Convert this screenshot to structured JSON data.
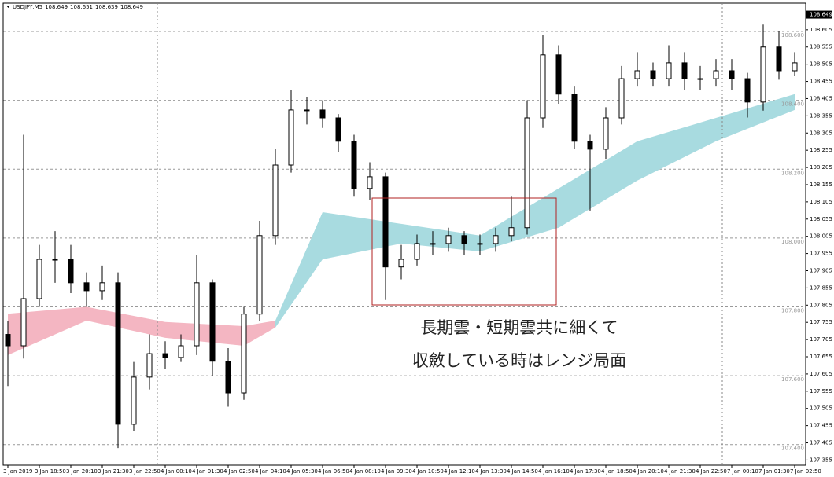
{
  "chart_data": {
    "type": "candlestick",
    "header": {
      "symbol": "USDJPY,M5",
      "quote": [
        108.649,
        108.651,
        108.639,
        108.649
      ]
    },
    "last_price": 108.649,
    "annotations": [
      "長期雲・短期雲共に細くて",
      "収斂している時はレンジ局面"
    ],
    "ylim": [
      107.34,
      108.664
    ],
    "xlim": [
      -0.3,
      50.7
    ],
    "yticks": [
      108.605,
      108.555,
      108.505,
      108.455,
      108.405,
      108.355,
      108.305,
      108.255,
      108.205,
      108.155,
      108.105,
      108.055,
      108.005,
      107.955,
      107.905,
      107.855,
      107.805,
      107.755,
      107.705,
      107.655,
      107.605,
      107.555,
      107.505,
      107.455,
      107.405,
      107.355
    ],
    "levels": [
      {
        "value": 108.6,
        "label": "108.600"
      },
      {
        "value": 108.4,
        "label": "108.400"
      },
      {
        "value": 108.2,
        "label": "108.200"
      },
      {
        "value": 108.0,
        "label": "108.000"
      },
      {
        "value": 107.8,
        "label": "107.800"
      },
      {
        "value": 107.6,
        "label": "107.600"
      },
      {
        "value": 107.4,
        "label": "107.400"
      }
    ],
    "xticks": [
      {
        "value": 0,
        "label": "3 Jan 2019"
      },
      {
        "value": 2,
        "label": "3 Jan 18:50"
      },
      {
        "value": 4,
        "label": "3 Jan 20:10"
      },
      {
        "value": 6,
        "label": "3 Jan 21:30"
      },
      {
        "value": 8,
        "label": "3 Jan 22:50"
      },
      {
        "value": 10,
        "label": "4 Jan 00:10"
      },
      {
        "value": 12,
        "label": "4 Jan 01:30"
      },
      {
        "value": 14,
        "label": "4 Jan 02:50"
      },
      {
        "value": 16,
        "label": "4 Jan 04:10"
      },
      {
        "value": 18,
        "label": "4 Jan 05:30"
      },
      {
        "value": 20,
        "label": "4 Jan 06:50"
      },
      {
        "value": 22,
        "label": "4 Jan 08:10"
      },
      {
        "value": 24,
        "label": "4 Jan 09:30"
      },
      {
        "value": 26,
        "label": "4 Jan 10:50"
      },
      {
        "value": 28,
        "label": "4 Jan 12:10"
      },
      {
        "value": 30,
        "label": "4 Jan 13:30"
      },
      {
        "value": 32,
        "label": "4 Jan 14:50"
      },
      {
        "value": 34,
        "label": "4 Jan 16:10"
      },
      {
        "value": 36,
        "label": "4 Jan 17:30"
      },
      {
        "value": 38,
        "label": "4 Jan 18:50"
      },
      {
        "value": 40,
        "label": "4 Jan 20:10"
      },
      {
        "value": 42,
        "label": "4 Jan 21:30"
      },
      {
        "value": 44,
        "label": "4 Jan 22:50"
      },
      {
        "value": 46,
        "label": "7 Jan 00:10"
      },
      {
        "value": 48,
        "label": "7 Jan 01:30"
      },
      {
        "value": 50,
        "label": "7 Jan 02:50"
      }
    ],
    "clouds": [
      {
        "color": "#f4b6c2",
        "index": [
          0,
          5,
          10,
          15,
          17
        ],
        "upper": [
          107.78,
          107.8,
          107.756,
          107.744,
          107.76
        ],
        "lower": [
          107.66,
          107.76,
          107.71,
          107.687,
          107.74
        ]
      },
      {
        "color": "#a8dbe0",
        "index": [
          17,
          20,
          25,
          30,
          35,
          40,
          45,
          50
        ],
        "upper": [
          107.76,
          108.075,
          108.041,
          108.007,
          108.144,
          108.281,
          108.349,
          108.418
        ],
        "lower": [
          107.74,
          107.938,
          107.984,
          107.961,
          108.03,
          108.167,
          108.281,
          108.372
        ]
      }
    ],
    "open": [
      107.72,
      107.687,
      107.824,
      107.938,
      107.938,
      107.87,
      107.847,
      107.87,
      107.459,
      107.596,
      107.664,
      107.653,
      107.687,
      107.87,
      107.642,
      107.55,
      107.779,
      108.007,
      108.212,
      108.372,
      108.372,
      108.349,
      108.281,
      108.144,
      108.178,
      107.916,
      107.938,
      107.984,
      107.984,
      108.007,
      107.984,
      107.984,
      108.007,
      108.03,
      108.349,
      108.532,
      108.418,
      108.281,
      108.258,
      108.349,
      108.463,
      108.486,
      108.463,
      108.509,
      108.463,
      108.463,
      108.486,
      108.463,
      108.395,
      108.555,
      108.486
    ],
    "high": [
      107.76,
      108.3,
      107.98,
      108.02,
      107.98,
      107.9,
      107.92,
      107.9,
      107.64,
      107.72,
      107.7,
      107.72,
      107.95,
      107.88,
      107.68,
      107.8,
      108.05,
      108.26,
      108.43,
      108.41,
      108.4,
      108.36,
      108.3,
      108.22,
      108.19,
      107.98,
      108.01,
      108.02,
      108.03,
      108.02,
      108.01,
      108.03,
      108.12,
      108.4,
      108.59,
      108.56,
      108.44,
      108.3,
      108.38,
      108.5,
      108.54,
      108.51,
      108.56,
      108.54,
      108.5,
      108.52,
      108.52,
      108.48,
      108.62,
      108.6,
      108.54
    ],
    "low": [
      107.57,
      107.65,
      107.8,
      107.87,
      107.84,
      107.8,
      107.82,
      107.39,
      107.44,
      107.56,
      107.62,
      107.64,
      107.66,
      107.6,
      107.51,
      107.53,
      107.76,
      107.98,
      108.19,
      108.33,
      108.32,
      108.25,
      108.12,
      108.11,
      107.82,
      107.88,
      107.92,
      107.95,
      107.96,
      107.95,
      107.95,
      107.96,
      107.99,
      108.01,
      108.32,
      108.39,
      108.26,
      108.08,
      108.23,
      108.33,
      108.44,
      108.44,
      108.44,
      108.43,
      108.43,
      108.44,
      108.43,
      108.35,
      108.37,
      108.46,
      108.47
    ],
    "close": [
      107.687,
      107.824,
      107.938,
      107.938,
      107.87,
      107.847,
      107.87,
      107.459,
      107.596,
      107.664,
      107.653,
      107.687,
      107.87,
      107.642,
      107.55,
      107.779,
      108.007,
      108.212,
      108.372,
      108.372,
      108.349,
      108.281,
      108.144,
      108.178,
      107.916,
      107.938,
      107.984,
      107.984,
      108.007,
      107.984,
      107.984,
      108.007,
      108.03,
      108.349,
      108.532,
      108.418,
      108.281,
      108.258,
      108.349,
      108.463,
      108.486,
      108.463,
      108.509,
      108.463,
      108.463,
      108.486,
      108.463,
      108.395,
      108.555,
      108.486,
      108.509
    ]
  }
}
